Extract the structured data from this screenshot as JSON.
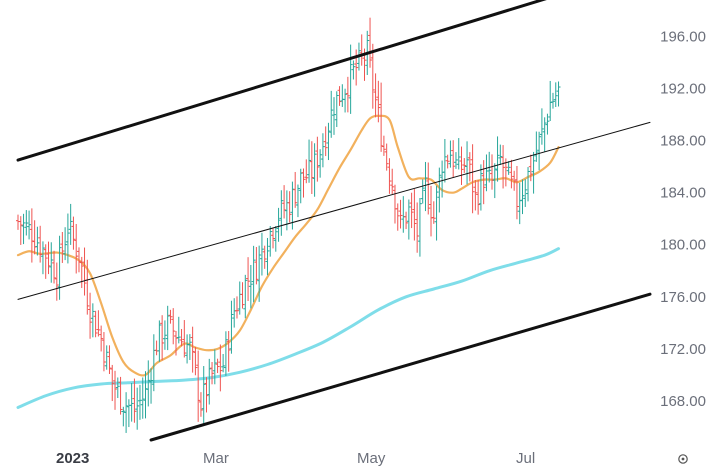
{
  "chart_data": {
    "type": "ohlc",
    "title": "",
    "xlabel": "",
    "ylabel": "",
    "y_axis": {
      "position": "right",
      "ticks": [
        168,
        172,
        176,
        180,
        184,
        188,
        192,
        196
      ],
      "tick_labels": [
        "168.00",
        "172.00",
        "176.00",
        "180.00",
        "184.00",
        "188.00",
        "192.00",
        "196.00"
      ],
      "range": [
        165.0,
        198.8
      ]
    },
    "x_axis": {
      "range_days": [
        0,
        228
      ],
      "tick_labels": [
        {
          "label": "2023",
          "day": 0,
          "bold": true
        },
        {
          "label": "Mar",
          "day": 59
        },
        {
          "label": "May",
          "day": 120
        },
        {
          "label": "Jul",
          "day": 181
        }
      ]
    },
    "colors": {
      "up": "#26a69a",
      "down": "#ef5350",
      "ma_fast": "#f2b15d",
      "ma_slow": "#7fdde9",
      "channel": "#111111"
    },
    "anchors": [
      [
        0,
        181.8
      ],
      [
        5,
        181.0
      ],
      [
        10,
        179.3
      ],
      [
        14,
        177.9
      ],
      [
        18,
        181.4
      ],
      [
        22,
        179.2
      ],
      [
        26,
        175.1
      ],
      [
        30,
        172.8
      ],
      [
        34,
        169.4
      ],
      [
        38,
        167.9
      ],
      [
        42,
        167.3
      ],
      [
        46,
        168.6
      ],
      [
        50,
        172.5
      ],
      [
        54,
        173.8
      ],
      [
        58,
        173.0
      ],
      [
        62,
        172.0
      ],
      [
        66,
        167.8
      ],
      [
        70,
        170.0
      ],
      [
        74,
        170.8
      ],
      [
        78,
        175.0
      ],
      [
        82,
        177.0
      ],
      [
        86,
        178.4
      ],
      [
        90,
        180.5
      ],
      [
        94,
        182.3
      ],
      [
        98,
        183.2
      ],
      [
        102,
        185.0
      ],
      [
        106,
        185.6
      ],
      [
        110,
        187.8
      ],
      [
        114,
        190.8
      ],
      [
        118,
        192.1
      ],
      [
        122,
        193.6
      ],
      [
        126,
        194.7
      ],
      [
        129,
        191.0
      ],
      [
        132,
        187.4
      ],
      [
        135,
        184.8
      ],
      [
        138,
        181.5
      ],
      [
        141,
        182.6
      ],
      [
        144,
        180.9
      ],
      [
        147,
        184.5
      ],
      [
        150,
        182.1
      ],
      [
        153,
        186.4
      ],
      [
        156,
        187.1
      ],
      [
        159,
        185.7
      ],
      [
        162,
        186.5
      ],
      [
        165,
        183.6
      ],
      [
        168,
        185.2
      ],
      [
        171,
        184.8
      ],
      [
        174,
        186.5
      ],
      [
        177,
        184.9
      ],
      [
        180,
        183.4
      ],
      [
        183,
        184.8
      ],
      [
        186,
        186.5
      ],
      [
        189,
        188.5
      ],
      [
        192,
        190.9
      ],
      [
        195,
        191.8
      ]
    ],
    "ma_fast": {
      "name": "",
      "points": [
        [
          0,
          179.2
        ],
        [
          4,
          179.5
        ],
        [
          8,
          179.3
        ],
        [
          14,
          179.4
        ],
        [
          18,
          179.2
        ],
        [
          22,
          178.8
        ],
        [
          26,
          177.8
        ],
        [
          30,
          175.5
        ],
        [
          34,
          172.9
        ],
        [
          38,
          171.0
        ],
        [
          42,
          170.2
        ],
        [
          46,
          170.0
        ],
        [
          50,
          170.9
        ],
        [
          55,
          171.5
        ],
        [
          60,
          172.4
        ],
        [
          64,
          172.1
        ],
        [
          68,
          171.9
        ],
        [
          72,
          172.0
        ],
        [
          76,
          172.5
        ],
        [
          80,
          173.4
        ],
        [
          84,
          175.0
        ],
        [
          88,
          176.8
        ],
        [
          92,
          178.2
        ],
        [
          96,
          179.4
        ],
        [
          100,
          180.6
        ],
        [
          104,
          181.6
        ],
        [
          108,
          182.7
        ],
        [
          112,
          184.3
        ],
        [
          116,
          185.9
        ],
        [
          120,
          187.3
        ],
        [
          124,
          188.8
        ],
        [
          127,
          189.7
        ],
        [
          130,
          189.9
        ],
        [
          134,
          189.6
        ],
        [
          137,
          187.5
        ],
        [
          141,
          185.2
        ],
        [
          145,
          185.1
        ],
        [
          149,
          185.0
        ],
        [
          153,
          184.2
        ],
        [
          157,
          184.0
        ],
        [
          160,
          184.3
        ],
        [
          164,
          184.8
        ],
        [
          168,
          185.0
        ],
        [
          172,
          185.0
        ],
        [
          176,
          185.1
        ],
        [
          180,
          184.8
        ],
        [
          184,
          185.2
        ],
        [
          188,
          185.6
        ],
        [
          192,
          186.3
        ],
        [
          195,
          187.5
        ]
      ]
    },
    "ma_slow": {
      "name": "",
      "points": [
        [
          0,
          167.5
        ],
        [
          10,
          168.4
        ],
        [
          20,
          169.0
        ],
        [
          30,
          169.3
        ],
        [
          40,
          169.4
        ],
        [
          50,
          169.5
        ],
        [
          60,
          169.6
        ],
        [
          70,
          169.8
        ],
        [
          80,
          170.2
        ],
        [
          90,
          170.8
        ],
        [
          100,
          171.6
        ],
        [
          110,
          172.5
        ],
        [
          120,
          173.7
        ],
        [
          130,
          175.0
        ],
        [
          140,
          176.0
        ],
        [
          150,
          176.6
        ],
        [
          160,
          177.2
        ],
        [
          170,
          178.0
        ],
        [
          180,
          178.6
        ],
        [
          190,
          179.2
        ],
        [
          195,
          179.7
        ]
      ]
    },
    "channel": {
      "upper": {
        "start": [
          0,
          186.5
        ],
        "end": [
          192,
          199.0
        ]
      },
      "middle": {
        "start": [
          0,
          175.8
        ],
        "end": [
          228,
          189.4
        ]
      },
      "lower": {
        "start": [
          48,
          165.0
        ],
        "end": [
          228,
          176.2
        ]
      }
    }
  },
  "footer": {
    "settings_icon": "gear-icon"
  }
}
